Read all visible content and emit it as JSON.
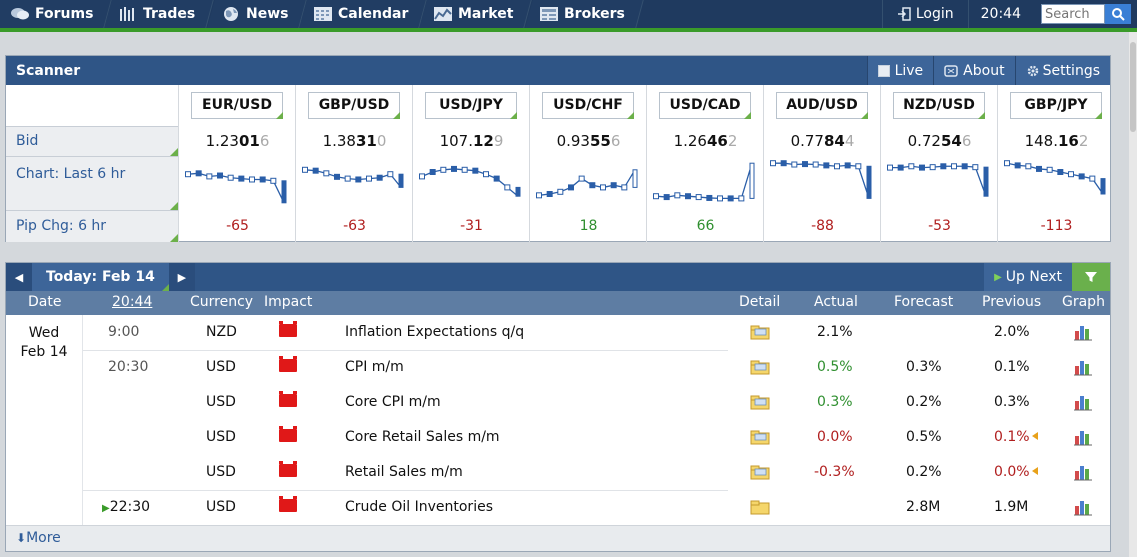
{
  "nav": {
    "items": [
      {
        "label": "Forums",
        "icon": "forums-icon"
      },
      {
        "label": "Trades",
        "icon": "trades-icon"
      },
      {
        "label": "News",
        "icon": "globe-icon"
      },
      {
        "label": "Calendar",
        "icon": "calendar-icon"
      },
      {
        "label": "Market",
        "icon": "market-icon"
      },
      {
        "label": "Brokers",
        "icon": "brokers-icon"
      }
    ],
    "login": "Login",
    "time": "20:44",
    "search_placeholder": "Search"
  },
  "scanner": {
    "title": "Scanner",
    "live": "Live",
    "about": "About",
    "settings": "Settings",
    "labels": {
      "bid": "Bid",
      "chart": "Chart: Last 6 hr",
      "pip": "Pip Chg: 6 hr"
    },
    "pairs": [
      {
        "name": "EUR/USD",
        "bid_a": "1.23",
        "bid_b": "01",
        "bid_c": "6",
        "pip": "-65",
        "dir": "neg",
        "trend": [
          0.3,
          0.28,
          0.35,
          0.33,
          0.38,
          0.4,
          0.42,
          0.42,
          0.45,
          0.95
        ]
      },
      {
        "name": "GBP/USD",
        "bid_a": "1.38",
        "bid_b": "31",
        "bid_c": "0",
        "pip": "-63",
        "dir": "neg",
        "trend": [
          0.2,
          0.22,
          0.28,
          0.36,
          0.4,
          0.42,
          0.4,
          0.38,
          0.3,
          0.6
        ]
      },
      {
        "name": "USD/JPY",
        "bid_a": "107.",
        "bid_b": "12",
        "bid_c": "9",
        "pip": "-31",
        "dir": "neg",
        "trend": [
          0.35,
          0.25,
          0.2,
          0.18,
          0.2,
          0.22,
          0.3,
          0.4,
          0.6,
          0.8
        ]
      },
      {
        "name": "USD/CHF",
        "bid_a": "0.93",
        "bid_b": "55",
        "bid_c": "6",
        "pip": "18",
        "dir": "pos",
        "trend": [
          0.78,
          0.75,
          0.7,
          0.6,
          0.4,
          0.55,
          0.6,
          0.55,
          0.6,
          0.2
        ]
      },
      {
        "name": "USD/CAD",
        "bid_a": "1.26",
        "bid_b": "46",
        "bid_c": "2",
        "pip": "66",
        "dir": "pos",
        "trend": [
          0.8,
          0.82,
          0.78,
          0.8,
          0.82,
          0.84,
          0.85,
          0.85,
          0.85,
          0.05
        ]
      },
      {
        "name": "AUD/USD",
        "bid_a": "0.77",
        "bid_b": "84",
        "bid_c": "4",
        "pip": "-88",
        "dir": "neg",
        "trend": [
          0.05,
          0.05,
          0.08,
          0.07,
          0.08,
          0.1,
          0.12,
          0.1,
          0.12,
          0.85
        ]
      },
      {
        "name": "NZD/USD",
        "bid_a": "0.72",
        "bid_b": "54",
        "bid_c": "6",
        "pip": "-53",
        "dir": "neg",
        "trend": [
          0.15,
          0.15,
          0.12,
          0.15,
          0.14,
          0.12,
          0.12,
          0.12,
          0.14,
          0.8
        ]
      },
      {
        "name": "GBP/JPY",
        "bid_a": "148.",
        "bid_b": "16",
        "bid_c": "2",
        "pip": "-113",
        "dir": "neg",
        "trend": [
          0.05,
          0.1,
          0.12,
          0.18,
          0.2,
          0.25,
          0.3,
          0.35,
          0.4,
          0.75
        ]
      }
    ]
  },
  "calendar": {
    "today_label": "Today: Feb 14",
    "up_next": "Up Next",
    "columns": {
      "date": "Date",
      "time": "20:44",
      "currency": "Currency",
      "impact": "Impact",
      "detail": "Detail",
      "actual": "Actual",
      "forecast": "Forecast",
      "previous": "Previous",
      "graph": "Graph"
    },
    "date_line1": "Wed",
    "date_line2": "Feb 14",
    "events": [
      {
        "time": "9:00",
        "currency": "NZD",
        "event": "Inflation Expectations q/q",
        "actual": "2.1%",
        "actual_class": "",
        "forecast": "",
        "previous": "2.0%",
        "previous_class": "",
        "revised": false
      },
      {
        "time": "20:30",
        "currency": "USD",
        "event": "CPI m/m",
        "actual": "0.5%",
        "actual_class": "pos",
        "forecast": "0.3%",
        "previous": "0.1%",
        "previous_class": "",
        "revised": false
      },
      {
        "time": "",
        "currency": "USD",
        "event": "Core CPI m/m",
        "actual": "0.3%",
        "actual_class": "pos",
        "forecast": "0.2%",
        "previous": "0.3%",
        "previous_class": "",
        "revised": false
      },
      {
        "time": "",
        "currency": "USD",
        "event": "Core Retail Sales m/m",
        "actual": "0.0%",
        "actual_class": "neg",
        "forecast": "0.5%",
        "previous": "0.1%",
        "previous_class": "neg",
        "revised": true
      },
      {
        "time": "",
        "currency": "USD",
        "event": "Retail Sales m/m",
        "actual": "-0.3%",
        "actual_class": "neg",
        "forecast": "0.2%",
        "previous": "0.0%",
        "previous_class": "neg",
        "revised": true
      },
      {
        "time": "22:30",
        "currency": "USD",
        "event": "Crude Oil Inventories",
        "actual": "",
        "actual_class": "",
        "forecast": "2.8M",
        "previous": "1.9M",
        "previous_class": "",
        "revised": false,
        "upcoming": true
      }
    ],
    "more": "More"
  }
}
